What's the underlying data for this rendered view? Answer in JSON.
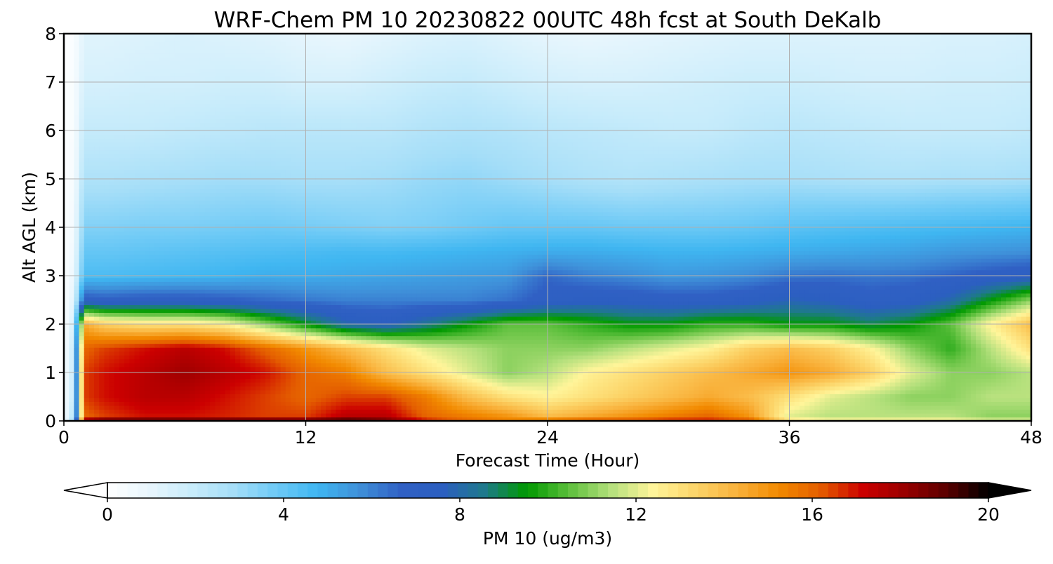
{
  "chart_data": {
    "type": "heatmap",
    "title": "WRF-Chem PM 10  20230822 00UTC 48h fcst at South DeKalb",
    "xlabel": "Forecast Time (Hour)",
    "ylabel": "Alt AGL (km)",
    "xlim": [
      0,
      48
    ],
    "ylim": [
      0,
      8
    ],
    "x_ticks": [
      0,
      12,
      24,
      36,
      48
    ],
    "y_ticks": [
      0,
      1,
      2,
      3,
      4,
      5,
      6,
      7,
      8
    ],
    "grid": true,
    "x_hours": [
      0,
      0.5,
      1,
      2,
      4,
      6,
      8,
      10,
      12,
      14,
      16,
      18,
      20,
      22,
      24,
      26,
      28,
      30,
      32,
      34,
      36,
      38,
      40,
      42,
      44,
      46,
      48
    ],
    "y_km": [
      0,
      0.1,
      0.5,
      1,
      1.5,
      2,
      2.5,
      3,
      3.5,
      4,
      5,
      6,
      7,
      8
    ],
    "values": [
      [
        0.5,
        3.0,
        18.5,
        19.5,
        19.5,
        19.5,
        19.5,
        19.5,
        19.3,
        19.8,
        19.0,
        17.0,
        16.0,
        15.5,
        16.0,
        16.5,
        16.5,
        17.0,
        17.0,
        16.5,
        13.0,
        12.5,
        12.5,
        12.5,
        12.5,
        12.0,
        12.0
      ],
      [
        0.4,
        2.5,
        16.0,
        16.5,
        17.0,
        17.0,
        16.8,
        16.5,
        16.5,
        17.5,
        17.5,
        16.0,
        15.5,
        15.0,
        14.0,
        14.5,
        15.0,
        15.5,
        16.0,
        15.0,
        12.0,
        11.5,
        11.5,
        11.5,
        11.5,
        11.0,
        11.0
      ],
      [
        0.3,
        2.0,
        16.5,
        17.0,
        17.5,
        17.5,
        17.0,
        16.5,
        16.0,
        16.5,
        16.5,
        15.5,
        14.0,
        13.0,
        12.5,
        13.0,
        13.5,
        14.0,
        14.5,
        14.0,
        13.0,
        12.0,
        11.5,
        11.0,
        11.0,
        11.5,
        11.5
      ],
      [
        0.3,
        2.0,
        16.5,
        17.0,
        17.5,
        18.0,
        17.5,
        17.0,
        16.0,
        15.5,
        14.0,
        13.0,
        12.0,
        11.0,
        11.5,
        12.5,
        13.0,
        13.5,
        14.0,
        14.5,
        15.0,
        14.5,
        13.5,
        12.0,
        11.0,
        11.0,
        11.5
      ],
      [
        0.3,
        2.0,
        16.0,
        16.5,
        17.0,
        17.5,
        17.0,
        16.0,
        15.0,
        14.0,
        13.0,
        12.0,
        11.5,
        11.0,
        11.0,
        11.0,
        11.5,
        12.0,
        12.5,
        13.5,
        14.0,
        13.5,
        12.5,
        11.0,
        10.0,
        11.5,
        13.0
      ],
      [
        0.2,
        1.5,
        14.5,
        13.5,
        13.0,
        13.0,
        12.5,
        11.0,
        9.5,
        8.0,
        7.5,
        8.5,
        9.5,
        10.5,
        10.5,
        10.0,
        9.5,
        9.5,
        10.0,
        10.0,
        9.5,
        9.5,
        9.0,
        9.5,
        10.5,
        12.5,
        14.0
      ],
      [
        0.2,
        1.2,
        7.0,
        6.8,
        7.0,
        7.0,
        6.8,
        6.5,
        6.2,
        6.0,
        6.0,
        6.0,
        6.0,
        6.3,
        7.0,
        7.3,
        7.2,
        7.0,
        7.0,
        7.3,
        7.8,
        7.5,
        7.0,
        7.2,
        8.0,
        9.5,
        11.0
      ],
      [
        0.2,
        0.8,
        4.5,
        4.5,
        4.6,
        4.7,
        4.8,
        5.0,
        5.0,
        5.1,
        5.2,
        5.3,
        5.4,
        5.5,
        6.5,
        6.0,
        5.8,
        5.5,
        5.6,
        5.8,
        6.2,
        6.3,
        6.2,
        6.3,
        6.6,
        7.0,
        7.3
      ],
      [
        0.2,
        0.6,
        4.0,
        4.0,
        4.1,
        4.2,
        4.3,
        4.4,
        4.5,
        4.6,
        4.6,
        4.7,
        4.8,
        4.9,
        5.0,
        5.0,
        4.9,
        4.8,
        4.8,
        4.9,
        5.0,
        5.1,
        5.2,
        5.3,
        5.5,
        5.6,
        5.7
      ],
      [
        0.2,
        0.5,
        3.5,
        3.5,
        3.6,
        3.6,
        3.7,
        3.8,
        3.7,
        3.6,
        3.5,
        3.6,
        3.8,
        4.0,
        4.0,
        4.0,
        3.9,
        3.9,
        3.9,
        4.0,
        4.2,
        4.3,
        4.4,
        4.5,
        4.6,
        4.7,
        4.8
      ],
      [
        0.1,
        0.4,
        2.6,
        2.6,
        2.7,
        2.8,
        2.9,
        2.9,
        2.8,
        2.8,
        2.9,
        3.1,
        3.2,
        3.0,
        2.8,
        2.6,
        2.5,
        2.6,
        2.7,
        2.8,
        2.8,
        2.7,
        2.6,
        2.6,
        2.7,
        2.7,
        2.8
      ],
      [
        0.1,
        0.3,
        2.0,
        2.0,
        2.0,
        2.1,
        2.2,
        2.3,
        2.3,
        2.3,
        2.3,
        2.5,
        2.6,
        2.5,
        2.3,
        2.2,
        2.1,
        2.0,
        2.0,
        2.2,
        2.3,
        2.2,
        2.1,
        2.0,
        2.0,
        2.0,
        2.1
      ],
      [
        0.1,
        0.3,
        1.5,
        1.5,
        1.6,
        1.6,
        1.7,
        1.7,
        1.5,
        1.5,
        1.7,
        1.9,
        2.0,
        1.8,
        1.6,
        1.5,
        1.5,
        1.6,
        1.7,
        1.8,
        1.8,
        1.7,
        1.6,
        1.6,
        1.7,
        1.7,
        1.8
      ],
      [
        0.1,
        0.2,
        1.2,
        1.2,
        1.3,
        1.4,
        1.3,
        1.2,
        1.0,
        0.9,
        1.1,
        1.3,
        1.4,
        1.2,
        1.0,
        0.9,
        1.0,
        1.1,
        1.2,
        1.3,
        1.3,
        1.3,
        1.3,
        1.3,
        1.4,
        1.4,
        1.5
      ]
    ],
    "colorbar": {
      "label": "PM 10  (ug/m3)",
      "vmin": 0,
      "vmax": 20,
      "ticks": [
        0,
        4,
        8,
        12,
        16,
        20
      ],
      "extend": "both",
      "colors": [
        "#ffffff",
        "#e8f6fd",
        "#c8ecfb",
        "#a5def8",
        "#6fcaf6",
        "#3fb6f1",
        "#3f90d9",
        "#3060c4",
        "#2b5fc0",
        "#1e7a8a",
        "#009900",
        "#5cbf3c",
        "#b4e07c",
        "#fff59a",
        "#fcd56a",
        "#f9b23c",
        "#f28a00",
        "#e45d00",
        "#cc0000",
        "#990000",
        "#5a0000",
        "#000000"
      ]
    }
  }
}
